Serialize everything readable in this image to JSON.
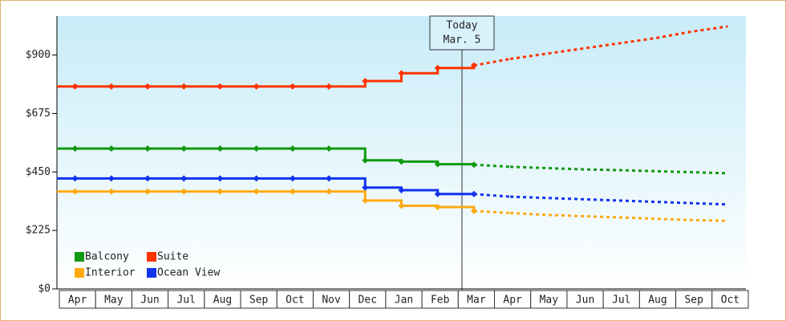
{
  "chart_data": {
    "type": "line",
    "categories": [
      "Apr",
      "May",
      "Jun",
      "Jul",
      "Aug",
      "Sep",
      "Oct",
      "Nov",
      "Dec",
      "Jan",
      "Feb",
      "Mar",
      "Apr",
      "May",
      "Jun",
      "Jul",
      "Aug",
      "Sep",
      "Oct"
    ],
    "ylim": [
      0,
      1050
    ],
    "yticks": [
      {
        "value": 0,
        "label": "$0"
      },
      {
        "value": 225,
        "label": "$225"
      },
      {
        "value": 450,
        "label": "$450"
      },
      {
        "value": 675,
        "label": "$675"
      },
      {
        "value": 900,
        "label": "$900"
      }
    ],
    "annotation": {
      "title": "Today",
      "date": "Mar. 5"
    },
    "legend": "lower left",
    "series": [
      {
        "name": "Balcony",
        "color": "#119911",
        "values": [
          540,
          540,
          540,
          540,
          540,
          540,
          540,
          540,
          495,
          490,
          480,
          478,
          null,
          null,
          null,
          null,
          null,
          null,
          null
        ],
        "forecast_values": [
          null,
          null,
          null,
          null,
          null,
          null,
          null,
          null,
          null,
          null,
          null,
          null,
          470,
          465,
          460,
          457,
          453,
          449,
          445
        ]
      },
      {
        "name": "Suite",
        "color": "#ff3300",
        "values": [
          779,
          779,
          779,
          779,
          779,
          779,
          779,
          779,
          800,
          830,
          850,
          860,
          null,
          null,
          null,
          null,
          null,
          null,
          null
        ],
        "forecast_values": [
          null,
          null,
          null,
          null,
          null,
          null,
          null,
          null,
          null,
          null,
          null,
          null,
          885,
          905,
          925,
          945,
          965,
          990,
          1010
        ]
      },
      {
        "name": "Interior",
        "color": "#ffaa11",
        "values": [
          375,
          375,
          375,
          375,
          375,
          375,
          375,
          375,
          340,
          320,
          315,
          300,
          null,
          null,
          null,
          null,
          null,
          null,
          null
        ],
        "forecast_values": [
          null,
          null,
          null,
          null,
          null,
          null,
          null,
          null,
          null,
          null,
          null,
          null,
          292,
          285,
          280,
          275,
          270,
          265,
          262
        ]
      },
      {
        "name": "Ocean View",
        "color": "#1133ee",
        "values": [
          425,
          425,
          425,
          425,
          425,
          425,
          425,
          425,
          390,
          380,
          365,
          365,
          null,
          null,
          null,
          null,
          null,
          null,
          null
        ],
        "forecast_values": [
          null,
          null,
          null,
          null,
          null,
          null,
          null,
          null,
          null,
          null,
          null,
          null,
          355,
          350,
          345,
          340,
          335,
          330,
          325
        ]
      }
    ]
  }
}
